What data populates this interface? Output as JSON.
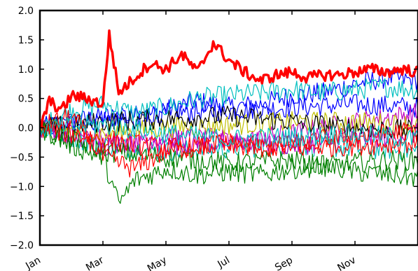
{
  "chart_data": {
    "type": "line",
    "title": "",
    "xlabel": "",
    "ylabel": "",
    "x_axis": "date",
    "xlim": [
      "Jan",
      "Dec"
    ],
    "ylim": [
      -2.0,
      2.0
    ],
    "grid": false,
    "legend": "none",
    "x_ticks": [
      "Jan",
      "Mar",
      "May",
      "Jul",
      "Sep",
      "Nov"
    ],
    "x_tick_months": [
      0,
      2,
      4,
      6,
      8,
      10
    ],
    "y_ticks": [
      "2.0",
      "1.5",
      "1.0",
      "0.5",
      "0.0",
      "−0.5",
      "−1.0",
      "−1.5",
      "−2.0"
    ],
    "y_tick_values": [
      2.0,
      1.5,
      1.0,
      0.5,
      0.0,
      -0.5,
      -1.0,
      -1.5,
      -2.0
    ],
    "series": [
      {
        "color": "#ff0000",
        "bold": true,
        "month": [
          0,
          0.3,
          0.7,
          1.0,
          1.5,
          2.0,
          2.2,
          2.5,
          3.0,
          3.5,
          4.0,
          4.5,
          5.0,
          5.5,
          6.0,
          6.5,
          7.0,
          7.5,
          8.0,
          8.5,
          9.0,
          9.5,
          10.0,
          10.5,
          11.0,
          11.5,
          12.0
        ],
        "values": [
          0.0,
          0.45,
          0.3,
          0.55,
          0.5,
          0.4,
          1.6,
          0.6,
          0.85,
          1.1,
          1.0,
          1.25,
          0.95,
          1.45,
          1.15,
          0.95,
          0.8,
          0.9,
          0.95,
          0.85,
          0.9,
          0.9,
          0.95,
          1.0,
          0.95,
          1.0,
          0.95
        ]
      },
      {
        "color": "#0000ff",
        "bold": false,
        "month": [
          0,
          1,
          2,
          3,
          4,
          5,
          6,
          7,
          8,
          9,
          10,
          11,
          12
        ],
        "values": [
          0.0,
          0.1,
          0.2,
          0.15,
          0.3,
          0.45,
          0.35,
          0.4,
          0.55,
          0.6,
          0.75,
          0.85,
          0.8
        ]
      },
      {
        "color": "#0000ff",
        "bold": false,
        "month": [
          0,
          2,
          4,
          6,
          8,
          10,
          12
        ],
        "values": [
          0.0,
          0.15,
          0.25,
          0.3,
          0.35,
          0.4,
          0.35
        ]
      },
      {
        "color": "#00bfbf",
        "bold": false,
        "month": [
          0,
          1,
          2,
          3,
          4,
          5,
          6,
          7,
          8,
          9,
          10,
          11,
          12
        ],
        "values": [
          0.0,
          0.3,
          0.4,
          0.25,
          0.35,
          0.5,
          0.55,
          0.6,
          0.65,
          0.6,
          0.65,
          0.7,
          0.65
        ]
      },
      {
        "color": "#00bfbf",
        "bold": false,
        "month": [
          0,
          2,
          4,
          6,
          8,
          10,
          12
        ],
        "values": [
          0.0,
          -0.3,
          -0.4,
          -0.35,
          -0.3,
          -0.35,
          -0.4
        ]
      },
      {
        "color": "#bf00bf",
        "bold": false,
        "month": [
          0,
          2,
          4,
          6,
          8,
          10,
          12
        ],
        "values": [
          0.0,
          -0.2,
          -0.3,
          -0.25,
          -0.1,
          0.1,
          0.25
        ]
      },
      {
        "color": "#bf00bf",
        "bold": false,
        "month": [
          0,
          2,
          4,
          6,
          8,
          10,
          12
        ],
        "values": [
          0.0,
          -0.3,
          -0.15,
          -0.2,
          -0.3,
          -0.2,
          -0.1
        ]
      },
      {
        "color": "#bfbf00",
        "bold": false,
        "month": [
          0,
          2,
          4,
          6,
          8,
          10,
          12
        ],
        "values": [
          0.0,
          -0.1,
          0.0,
          0.05,
          0.1,
          0.1,
          0.05
        ]
      },
      {
        "color": "#000000",
        "bold": false,
        "month": [
          0,
          2,
          4,
          6,
          8,
          10,
          12
        ],
        "values": [
          0.0,
          0.1,
          0.15,
          0.2,
          0.1,
          0.0,
          -0.05
        ]
      },
      {
        "color": "#008000",
        "bold": false,
        "month": [
          0,
          1,
          2,
          2.5,
          3,
          4,
          5,
          6,
          7,
          8,
          9,
          10,
          11,
          12
        ],
        "values": [
          0.0,
          -0.3,
          -0.5,
          -1.3,
          -0.9,
          -0.7,
          -0.8,
          -0.75,
          -0.8,
          -0.7,
          -0.65,
          -0.6,
          -0.55,
          -0.55
        ]
      },
      {
        "color": "#008000",
        "bold": false,
        "month": [
          0,
          2,
          4,
          6,
          8,
          10,
          12
        ],
        "values": [
          0.0,
          -0.4,
          -0.5,
          -0.6,
          -0.55,
          -0.75,
          -0.85
        ]
      },
      {
        "color": "#ff0000",
        "bold": false,
        "month": [
          0,
          1,
          2,
          3,
          4,
          5,
          6,
          7,
          8,
          9,
          10,
          11,
          12
        ],
        "values": [
          0.0,
          0.2,
          -0.5,
          -0.7,
          -0.4,
          -0.3,
          -0.25,
          -0.35,
          -0.3,
          -0.2,
          -0.15,
          -0.1,
          -0.05
        ]
      },
      {
        "color": "#ff0000",
        "bold": false,
        "month": [
          0,
          2,
          4,
          6,
          8,
          10,
          12
        ],
        "values": [
          0.0,
          -0.2,
          -0.35,
          -0.3,
          -0.35,
          -0.3,
          -0.25
        ]
      },
      {
        "color": "#00bfbf",
        "bold": false,
        "month": [
          0,
          2,
          4,
          6,
          8,
          10,
          12
        ],
        "values": [
          0.0,
          0.05,
          -0.1,
          -0.2,
          -0.15,
          -0.1,
          -0.2
        ]
      }
    ]
  }
}
